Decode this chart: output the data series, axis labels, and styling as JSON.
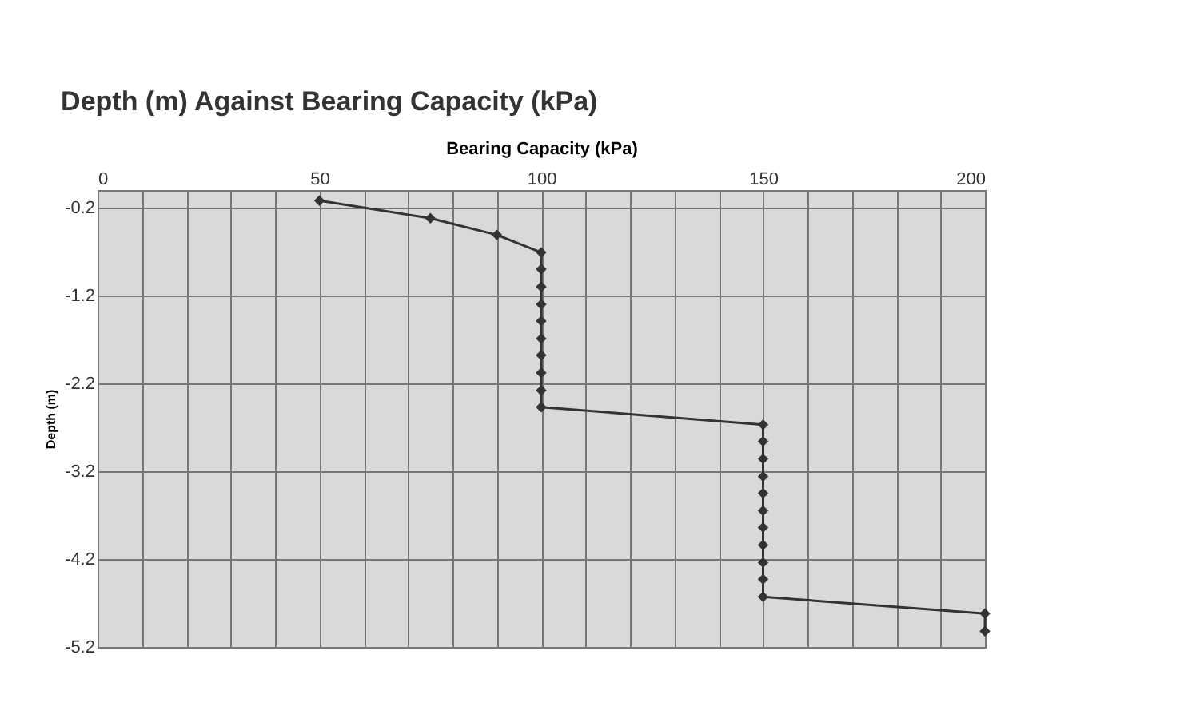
{
  "chart_data": {
    "type": "line",
    "title": "Depth (m) Against Bearing Capacity (kPa)",
    "xlabel": "Bearing Capacity (kPa)",
    "ylabel": "Depth (m)",
    "x": [
      50,
      75,
      90,
      100,
      100,
      100,
      100,
      100,
      100,
      100,
      100,
      100,
      100,
      150,
      150,
      150,
      150,
      150,
      150,
      150,
      150,
      150,
      150,
      150,
      200,
      200
    ],
    "series": [
      {
        "color": "#333333",
        "values": [
          -0.12,
          -0.32,
          -0.51,
          -0.71,
          -0.9,
          -1.1,
          -1.3,
          -1.49,
          -1.69,
          -1.88,
          -2.08,
          -2.28,
          -2.47,
          -2.67,
          -2.86,
          -3.06,
          -3.26,
          -3.45,
          -3.65,
          -3.84,
          -4.04,
          -4.24,
          -4.43,
          -4.63,
          -4.82,
          -5.02
        ]
      }
    ],
    "xlim": [
      0,
      200
    ],
    "xticks": [
      0,
      {
        "value": 10,
        "label": null
      },
      {
        "value": 20,
        "label": null
      },
      {
        "value": 30,
        "label": null
      },
      {
        "value": 40,
        "label": null
      },
      50,
      {
        "value": 60,
        "label": null
      },
      {
        "value": 70,
        "label": null
      },
      {
        "value": 80,
        "label": null
      },
      {
        "value": 90,
        "label": null
      },
      100,
      {
        "value": 110,
        "label": null
      },
      {
        "value": 120,
        "label": null
      },
      {
        "value": 130,
        "label": null
      },
      {
        "value": 140,
        "label": null
      },
      150,
      {
        "value": 160,
        "label": null
      },
      {
        "value": 170,
        "label": null
      },
      {
        "value": 180,
        "label": null
      },
      {
        "value": 190,
        "label": null
      },
      200
    ],
    "ylim": [
      -5.2,
      0
    ],
    "yticks": [
      -0.2,
      -1.2,
      -2.2,
      -3.2,
      -4.2,
      -5.2
    ],
    "grid": true,
    "marker": "diamond",
    "line_style": "solid"
  }
}
